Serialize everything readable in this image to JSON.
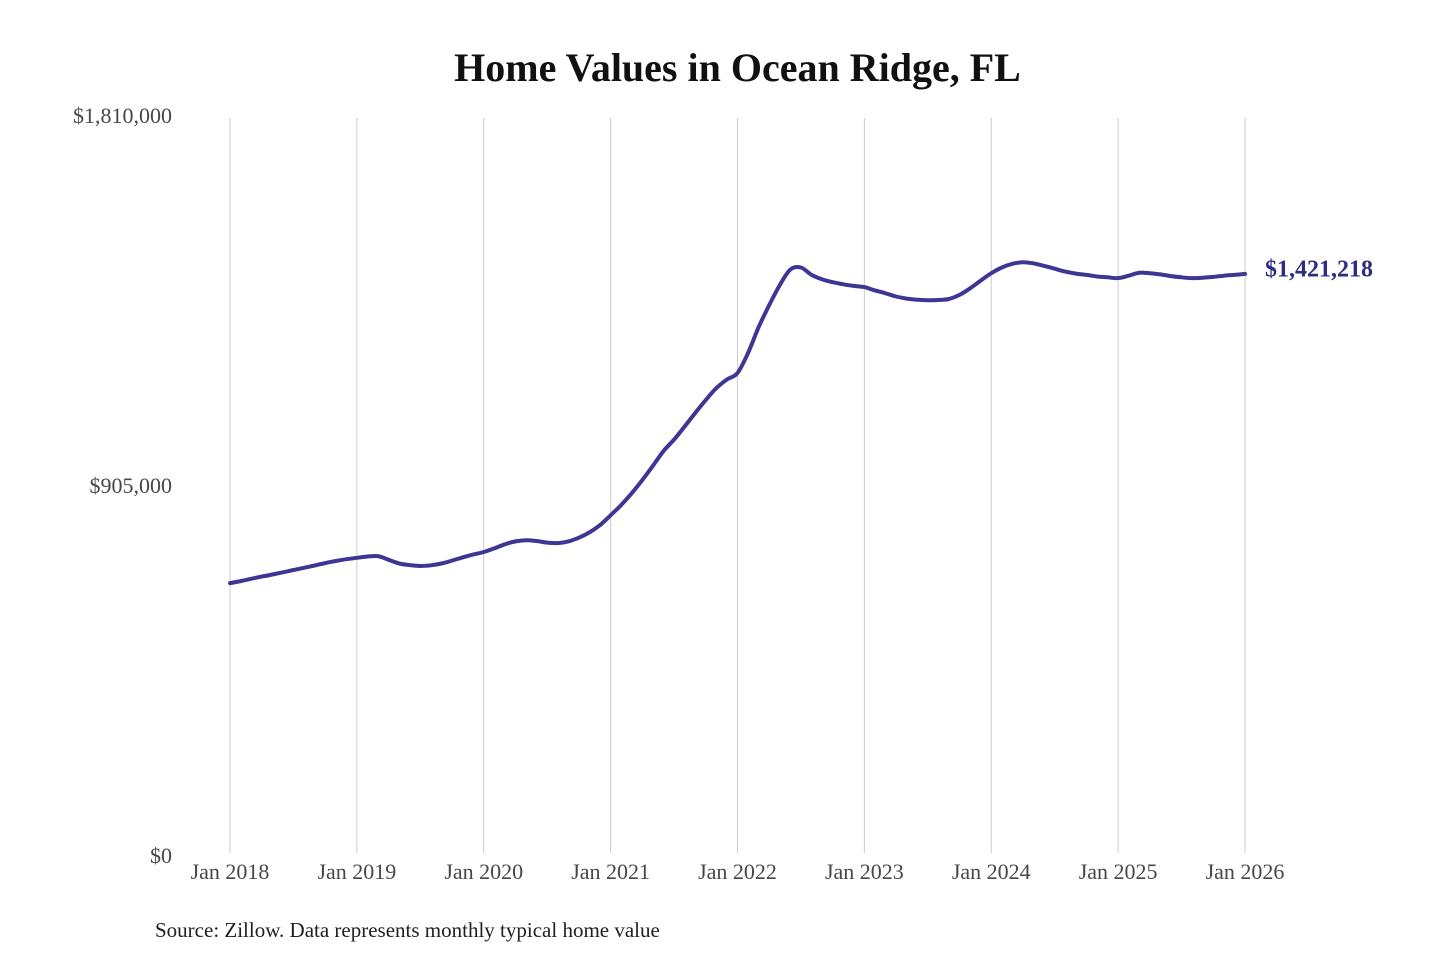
{
  "page": {
    "background_color": "#ffffff"
  },
  "chart": {
    "title": "Home Values in Ocean Ridge, FL",
    "source_note": "Source: Zillow. Data represents monthly typical home value"
  },
  "chart_data": {
    "type": "line",
    "title": "Home Values in Ocean Ridge, FL",
    "frequency": "monthly",
    "x_start": "Jan 2018",
    "x_end": "Jan 2026",
    "x_labels": [
      "Jan 2018",
      "Jan 2019",
      "Jan 2020",
      "Jan 2021",
      "Jan 2022",
      "Jan 2023",
      "Jan 2024",
      "Jan 2025",
      "Jan 2026"
    ],
    "y_axis": {
      "min": 0,
      "max": 1810000,
      "ticks": [
        {
          "label": "$1,810,000",
          "value": 1810000
        },
        {
          "label": "$905,000",
          "value": 905000
        },
        {
          "label": "$0",
          "value": 0
        }
      ]
    },
    "grid": "vertical-only",
    "legend": "none",
    "colors": {
      "line": "#3e3694",
      "gridline": "#cccccc",
      "axis_label": "#474747",
      "annotation": "#2d2c80"
    },
    "annotation": {
      "text": "$1,421,218",
      "value": 1421218
    },
    "series": [
      {
        "name": "Typical home value",
        "color": "#3e3694",
        "values": [
          665000,
          670000,
          675500,
          681000,
          686000,
          691500,
          697000,
          702500,
          708000,
          714000,
          719000,
          723500,
          727000,
          730000,
          731000,
          722000,
          713000,
          709000,
          707000,
          708500,
          713000,
          720000,
          728000,
          735000,
          741000,
          750000,
          760000,
          767000,
          770000,
          768000,
          764000,
          763000,
          767000,
          776000,
          789000,
          807000,
          831000,
          856000,
          885000,
          917000,
          952000,
          988000,
          1016000,
          1048000,
          1081000,
          1113000,
          1142000,
          1163000,
          1179000,
          1228000,
          1291000,
          1345000,
          1394000,
          1432000,
          1437000,
          1419000,
          1408000,
          1401000,
          1396000,
          1392000,
          1389000,
          1381000,
          1374000,
          1366000,
          1361000,
          1358000,
          1357000,
          1357500,
          1360000,
          1370000,
          1386000,
          1405000,
          1423000,
          1437000,
          1446000,
          1450000,
          1447000,
          1441000,
          1434000,
          1427000,
          1422000,
          1419000,
          1415000,
          1413000,
          1411000,
          1417000,
          1424000,
          1423000,
          1420000,
          1416000,
          1413000,
          1411000,
          1412000,
          1414000,
          1417000,
          1419000,
          1421218
        ]
      }
    ]
  }
}
